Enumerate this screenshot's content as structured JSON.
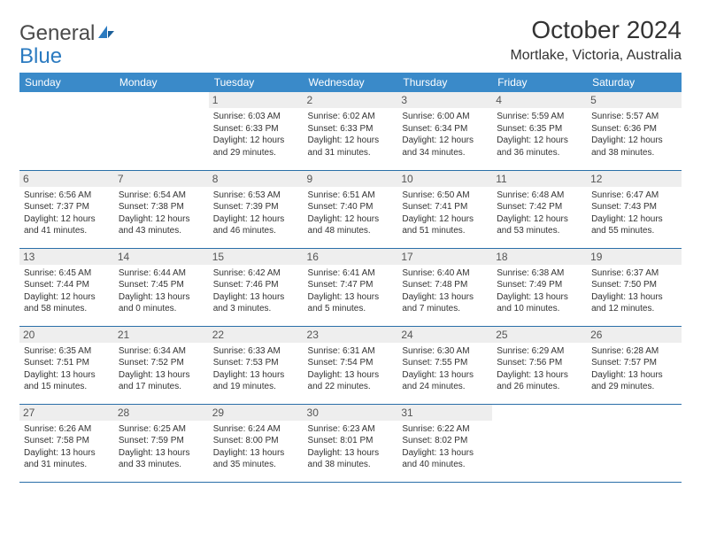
{
  "logo": {
    "general": "General",
    "blue": "Blue"
  },
  "title": "October 2024",
  "location": "Mortlake, Victoria, Australia",
  "colors": {
    "header_bg": "#3a8ac9",
    "header_text": "#ffffff",
    "border": "#2a6fa8",
    "daynum_bg": "#eeeeee",
    "logo_blue": "#2a7ac0"
  },
  "day_headers": [
    "Sunday",
    "Monday",
    "Tuesday",
    "Wednesday",
    "Thursday",
    "Friday",
    "Saturday"
  ],
  "weeks": [
    [
      {
        "n": "",
        "sunrise": "",
        "sunset": "",
        "daylight": ""
      },
      {
        "n": "",
        "sunrise": "",
        "sunset": "",
        "daylight": ""
      },
      {
        "n": "1",
        "sunrise": "Sunrise: 6:03 AM",
        "sunset": "Sunset: 6:33 PM",
        "daylight": "Daylight: 12 hours and 29 minutes."
      },
      {
        "n": "2",
        "sunrise": "Sunrise: 6:02 AM",
        "sunset": "Sunset: 6:33 PM",
        "daylight": "Daylight: 12 hours and 31 minutes."
      },
      {
        "n": "3",
        "sunrise": "Sunrise: 6:00 AM",
        "sunset": "Sunset: 6:34 PM",
        "daylight": "Daylight: 12 hours and 34 minutes."
      },
      {
        "n": "4",
        "sunrise": "Sunrise: 5:59 AM",
        "sunset": "Sunset: 6:35 PM",
        "daylight": "Daylight: 12 hours and 36 minutes."
      },
      {
        "n": "5",
        "sunrise": "Sunrise: 5:57 AM",
        "sunset": "Sunset: 6:36 PM",
        "daylight": "Daylight: 12 hours and 38 minutes."
      }
    ],
    [
      {
        "n": "6",
        "sunrise": "Sunrise: 6:56 AM",
        "sunset": "Sunset: 7:37 PM",
        "daylight": "Daylight: 12 hours and 41 minutes."
      },
      {
        "n": "7",
        "sunrise": "Sunrise: 6:54 AM",
        "sunset": "Sunset: 7:38 PM",
        "daylight": "Daylight: 12 hours and 43 minutes."
      },
      {
        "n": "8",
        "sunrise": "Sunrise: 6:53 AM",
        "sunset": "Sunset: 7:39 PM",
        "daylight": "Daylight: 12 hours and 46 minutes."
      },
      {
        "n": "9",
        "sunrise": "Sunrise: 6:51 AM",
        "sunset": "Sunset: 7:40 PM",
        "daylight": "Daylight: 12 hours and 48 minutes."
      },
      {
        "n": "10",
        "sunrise": "Sunrise: 6:50 AM",
        "sunset": "Sunset: 7:41 PM",
        "daylight": "Daylight: 12 hours and 51 minutes."
      },
      {
        "n": "11",
        "sunrise": "Sunrise: 6:48 AM",
        "sunset": "Sunset: 7:42 PM",
        "daylight": "Daylight: 12 hours and 53 minutes."
      },
      {
        "n": "12",
        "sunrise": "Sunrise: 6:47 AM",
        "sunset": "Sunset: 7:43 PM",
        "daylight": "Daylight: 12 hours and 55 minutes."
      }
    ],
    [
      {
        "n": "13",
        "sunrise": "Sunrise: 6:45 AM",
        "sunset": "Sunset: 7:44 PM",
        "daylight": "Daylight: 12 hours and 58 minutes."
      },
      {
        "n": "14",
        "sunrise": "Sunrise: 6:44 AM",
        "sunset": "Sunset: 7:45 PM",
        "daylight": "Daylight: 13 hours and 0 minutes."
      },
      {
        "n": "15",
        "sunrise": "Sunrise: 6:42 AM",
        "sunset": "Sunset: 7:46 PM",
        "daylight": "Daylight: 13 hours and 3 minutes."
      },
      {
        "n": "16",
        "sunrise": "Sunrise: 6:41 AM",
        "sunset": "Sunset: 7:47 PM",
        "daylight": "Daylight: 13 hours and 5 minutes."
      },
      {
        "n": "17",
        "sunrise": "Sunrise: 6:40 AM",
        "sunset": "Sunset: 7:48 PM",
        "daylight": "Daylight: 13 hours and 7 minutes."
      },
      {
        "n": "18",
        "sunrise": "Sunrise: 6:38 AM",
        "sunset": "Sunset: 7:49 PM",
        "daylight": "Daylight: 13 hours and 10 minutes."
      },
      {
        "n": "19",
        "sunrise": "Sunrise: 6:37 AM",
        "sunset": "Sunset: 7:50 PM",
        "daylight": "Daylight: 13 hours and 12 minutes."
      }
    ],
    [
      {
        "n": "20",
        "sunrise": "Sunrise: 6:35 AM",
        "sunset": "Sunset: 7:51 PM",
        "daylight": "Daylight: 13 hours and 15 minutes."
      },
      {
        "n": "21",
        "sunrise": "Sunrise: 6:34 AM",
        "sunset": "Sunset: 7:52 PM",
        "daylight": "Daylight: 13 hours and 17 minutes."
      },
      {
        "n": "22",
        "sunrise": "Sunrise: 6:33 AM",
        "sunset": "Sunset: 7:53 PM",
        "daylight": "Daylight: 13 hours and 19 minutes."
      },
      {
        "n": "23",
        "sunrise": "Sunrise: 6:31 AM",
        "sunset": "Sunset: 7:54 PM",
        "daylight": "Daylight: 13 hours and 22 minutes."
      },
      {
        "n": "24",
        "sunrise": "Sunrise: 6:30 AM",
        "sunset": "Sunset: 7:55 PM",
        "daylight": "Daylight: 13 hours and 24 minutes."
      },
      {
        "n": "25",
        "sunrise": "Sunrise: 6:29 AM",
        "sunset": "Sunset: 7:56 PM",
        "daylight": "Daylight: 13 hours and 26 minutes."
      },
      {
        "n": "26",
        "sunrise": "Sunrise: 6:28 AM",
        "sunset": "Sunset: 7:57 PM",
        "daylight": "Daylight: 13 hours and 29 minutes."
      }
    ],
    [
      {
        "n": "27",
        "sunrise": "Sunrise: 6:26 AM",
        "sunset": "Sunset: 7:58 PM",
        "daylight": "Daylight: 13 hours and 31 minutes."
      },
      {
        "n": "28",
        "sunrise": "Sunrise: 6:25 AM",
        "sunset": "Sunset: 7:59 PM",
        "daylight": "Daylight: 13 hours and 33 minutes."
      },
      {
        "n": "29",
        "sunrise": "Sunrise: 6:24 AM",
        "sunset": "Sunset: 8:00 PM",
        "daylight": "Daylight: 13 hours and 35 minutes."
      },
      {
        "n": "30",
        "sunrise": "Sunrise: 6:23 AM",
        "sunset": "Sunset: 8:01 PM",
        "daylight": "Daylight: 13 hours and 38 minutes."
      },
      {
        "n": "31",
        "sunrise": "Sunrise: 6:22 AM",
        "sunset": "Sunset: 8:02 PM",
        "daylight": "Daylight: 13 hours and 40 minutes."
      },
      {
        "n": "",
        "sunrise": "",
        "sunset": "",
        "daylight": ""
      },
      {
        "n": "",
        "sunrise": "",
        "sunset": "",
        "daylight": ""
      }
    ]
  ]
}
